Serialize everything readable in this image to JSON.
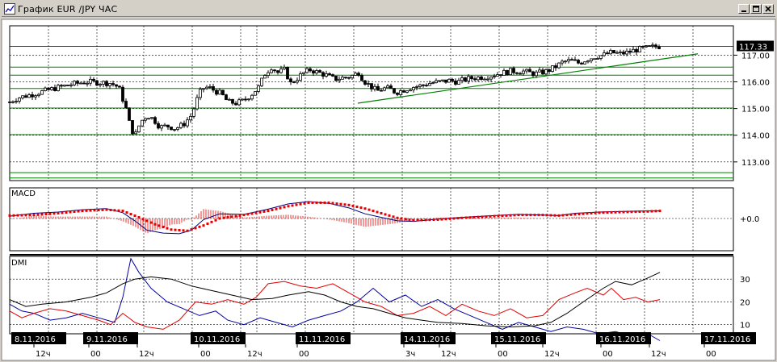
{
  "window": {
    "title": "График EUR /JPY  ЧАС",
    "buttons": [
      "minimize",
      "maximize",
      "close"
    ]
  },
  "colors": {
    "background": "#ffffff",
    "grid": "#000000",
    "level_line": "#008000",
    "trend_line": "#008000",
    "macd_line": "#000080",
    "macd_signal": "#e00000",
    "macd_hist": "#e00000",
    "dmi_adx": "#000000",
    "dmi_plus": "#e00000",
    "dmi_minus": "#0000a0",
    "price_tag_bg": "#000000",
    "date_label_bg": "#000000"
  },
  "chart_data": [
    {
      "type": "candlestick",
      "instrument": "EUR/JPY",
      "timeframe": "ЧАС",
      "ylim": [
        112.3,
        118.1
      ],
      "yticks": [
        "117.00",
        "116.00",
        "115.00",
        "114.00",
        "113.00"
      ],
      "ytick_values": [
        117.0,
        116.0,
        115.0,
        114.0,
        113.0
      ],
      "last_price": "117.33",
      "last_value": 117.33,
      "horizontal_levels": [
        116.55,
        116.25,
        115.75,
        115.02,
        114.02,
        112.6,
        112.4
      ],
      "trendline": {
        "from": [
          "14.11.2016 00:00",
          115.2
        ],
        "to": [
          "17.11.2016 00:00",
          117.05
        ]
      },
      "grid": "dashed",
      "price_path": [
        [
          0,
          115.25
        ],
        [
          10,
          115.4
        ],
        [
          30,
          115.55
        ],
        [
          55,
          115.75
        ],
        [
          75,
          115.9
        ],
        [
          95,
          116.0
        ],
        [
          115,
          115.97
        ],
        [
          125,
          115.95
        ],
        [
          135,
          115.8
        ],
        [
          145,
          114.9
        ],
        [
          150,
          114.2
        ],
        [
          156,
          114.05
        ],
        [
          162,
          114.5
        ],
        [
          170,
          114.75
        ],
        [
          178,
          114.6
        ],
        [
          186,
          114.3
        ],
        [
          195,
          114.35
        ],
        [
          205,
          114.25
        ],
        [
          215,
          114.4
        ],
        [
          225,
          114.75
        ],
        [
          232,
          115.35
        ],
        [
          238,
          115.75
        ],
        [
          246,
          115.8
        ],
        [
          255,
          115.65
        ],
        [
          262,
          115.55
        ],
        [
          270,
          115.25
        ],
        [
          280,
          115.2
        ],
        [
          290,
          115.3
        ],
        [
          300,
          115.55
        ],
        [
          308,
          115.8
        ],
        [
          316,
          116.3
        ],
        [
          324,
          116.55
        ],
        [
          332,
          116.35
        ],
        [
          340,
          116.45
        ],
        [
          348,
          115.95
        ],
        [
          355,
          116.1
        ],
        [
          362,
          116.3
        ],
        [
          372,
          116.45
        ],
        [
          382,
          116.35
        ],
        [
          392,
          116.25
        ],
        [
          402,
          116.1
        ],
        [
          412,
          116.15
        ],
        [
          422,
          116.2
        ],
        [
          432,
          116.35
        ],
        [
          438,
          116.05
        ],
        [
          446,
          115.85
        ],
        [
          455,
          115.65
        ],
        [
          462,
          115.75
        ],
        [
          470,
          115.75
        ],
        [
          478,
          115.6
        ],
        [
          488,
          115.7
        ],
        [
          498,
          115.8
        ],
        [
          508,
          115.85
        ],
        [
          520,
          115.95
        ],
        [
          532,
          116.0
        ],
        [
          545,
          116.05
        ],
        [
          555,
          116.0
        ],
        [
          565,
          116.1
        ],
        [
          575,
          116.15
        ],
        [
          590,
          116.2
        ],
        [
          605,
          116.3
        ],
        [
          620,
          116.4
        ],
        [
          635,
          116.4
        ],
        [
          650,
          116.3
        ],
        [
          665,
          116.4
        ],
        [
          675,
          116.55
        ],
        [
          685,
          116.75
        ],
        [
          695,
          116.8
        ],
        [
          705,
          116.7
        ],
        [
          715,
          116.85
        ],
        [
          725,
          116.95
        ],
        [
          735,
          117.0
        ],
        [
          745,
          117.1
        ],
        [
          755,
          117.05
        ],
        [
          765,
          117.1
        ],
        [
          775,
          117.2
        ],
        [
          785,
          117.25
        ],
        [
          795,
          117.3
        ],
        [
          805,
          117.33
        ]
      ]
    },
    {
      "type": "line",
      "name": "MACD",
      "zero_label": "+0.0",
      "macd_path": [
        [
          0,
          0.2
        ],
        [
          30,
          0.45
        ],
        [
          60,
          0.55
        ],
        [
          90,
          0.75
        ],
        [
          120,
          0.85
        ],
        [
          140,
          0.5
        ],
        [
          155,
          -0.2
        ],
        [
          170,
          -1.0
        ],
        [
          190,
          -1.25
        ],
        [
          210,
          -1.3
        ],
        [
          225,
          -1.0
        ],
        [
          240,
          -0.1
        ],
        [
          260,
          0.4
        ],
        [
          290,
          0.35
        ],
        [
          320,
          0.8
        ],
        [
          345,
          1.25
        ],
        [
          370,
          1.45
        ],
        [
          395,
          1.3
        ],
        [
          420,
          0.9
        ],
        [
          440,
          0.4
        ],
        [
          460,
          0.1
        ],
        [
          480,
          -0.2
        ],
        [
          500,
          -0.25
        ],
        [
          530,
          -0.05
        ],
        [
          560,
          0.1
        ],
        [
          600,
          0.25
        ],
        [
          630,
          0.35
        ],
        [
          660,
          0.3
        ],
        [
          680,
          0.25
        ],
        [
          700,
          0.45
        ],
        [
          730,
          0.55
        ],
        [
          760,
          0.6
        ],
        [
          790,
          0.65
        ],
        [
          805,
          0.65
        ]
      ],
      "signal_path": [
        [
          0,
          0.25
        ],
        [
          30,
          0.3
        ],
        [
          60,
          0.45
        ],
        [
          90,
          0.65
        ],
        [
          120,
          0.75
        ],
        [
          140,
          0.65
        ],
        [
          160,
          0.1
        ],
        [
          180,
          -0.5
        ],
        [
          200,
          -0.95
        ],
        [
          220,
          -1.05
        ],
        [
          240,
          -0.6
        ],
        [
          260,
          0.0
        ],
        [
          290,
          0.3
        ],
        [
          320,
          0.65
        ],
        [
          345,
          1.05
        ],
        [
          370,
          1.35
        ],
        [
          395,
          1.35
        ],
        [
          420,
          1.15
        ],
        [
          440,
          0.85
        ],
        [
          460,
          0.45
        ],
        [
          480,
          0.05
        ],
        [
          500,
          -0.15
        ],
        [
          530,
          -0.1
        ],
        [
          560,
          0.05
        ],
        [
          600,
          0.2
        ],
        [
          630,
          0.3
        ],
        [
          660,
          0.3
        ],
        [
          680,
          0.25
        ],
        [
          700,
          0.35
        ],
        [
          730,
          0.5
        ],
        [
          760,
          0.55
        ],
        [
          790,
          0.6
        ],
        [
          805,
          0.65
        ]
      ]
    },
    {
      "type": "line",
      "name": "DMI",
      "ylim": [
        6,
        40
      ],
      "yticks": [
        "30",
        "20",
        "10"
      ],
      "ytick_values": [
        30,
        20,
        10
      ],
      "adx_path": [
        [
          0,
          21
        ],
        [
          20,
          18
        ],
        [
          40,
          19
        ],
        [
          70,
          20
        ],
        [
          100,
          22
        ],
        [
          120,
          24
        ],
        [
          140,
          28
        ],
        [
          155,
          30
        ],
        [
          175,
          31
        ],
        [
          200,
          30
        ],
        [
          225,
          27
        ],
        [
          250,
          25
        ],
        [
          275,
          23
        ],
        [
          300,
          21
        ],
        [
          325,
          21.5
        ],
        [
          345,
          23
        ],
        [
          370,
          24.5
        ],
        [
          390,
          23
        ],
        [
          410,
          20
        ],
        [
          430,
          18
        ],
        [
          450,
          17
        ],
        [
          470,
          15
        ],
        [
          490,
          13
        ],
        [
          510,
          12
        ],
        [
          530,
          11
        ],
        [
          560,
          10.5
        ],
        [
          590,
          9.5
        ],
        [
          620,
          9
        ],
        [
          650,
          9.5
        ],
        [
          670,
          11
        ],
        [
          690,
          15
        ],
        [
          710,
          20
        ],
        [
          735,
          26
        ],
        [
          750,
          29
        ],
        [
          770,
          27.5
        ],
        [
          790,
          30.5
        ],
        [
          805,
          33
        ]
      ],
      "plus_path": [
        [
          0,
          16
        ],
        [
          15,
          13
        ],
        [
          30,
          15
        ],
        [
          50,
          17
        ],
        [
          70,
          16
        ],
        [
          90,
          14
        ],
        [
          110,
          12
        ],
        [
          125,
          10
        ],
        [
          140,
          15
        ],
        [
          155,
          11
        ],
        [
          170,
          9
        ],
        [
          190,
          8
        ],
        [
          210,
          12
        ],
        [
          230,
          20
        ],
        [
          250,
          19
        ],
        [
          270,
          21
        ],
        [
          290,
          19
        ],
        [
          305,
          22
        ],
        [
          320,
          28
        ],
        [
          340,
          29
        ],
        [
          360,
          27
        ],
        [
          380,
          26
        ],
        [
          400,
          28
        ],
        [
          420,
          24
        ],
        [
          440,
          20
        ],
        [
          460,
          18
        ],
        [
          480,
          14
        ],
        [
          500,
          15
        ],
        [
          520,
          18
        ],
        [
          540,
          14
        ],
        [
          560,
          19
        ],
        [
          580,
          16
        ],
        [
          600,
          14
        ],
        [
          620,
          17
        ],
        [
          640,
          13
        ],
        [
          660,
          14
        ],
        [
          680,
          21
        ],
        [
          700,
          24
        ],
        [
          715,
          26
        ],
        [
          735,
          23
        ],
        [
          745,
          26
        ],
        [
          760,
          21
        ],
        [
          775,
          22
        ],
        [
          790,
          20
        ],
        [
          805,
          21
        ]
      ],
      "minus_path": [
        [
          0,
          19
        ],
        [
          15,
          16
        ],
        [
          30,
          15
        ],
        [
          50,
          12
        ],
        [
          70,
          13
        ],
        [
          90,
          15
        ],
        [
          110,
          13
        ],
        [
          130,
          11
        ],
        [
          140,
          22
        ],
        [
          150,
          39
        ],
        [
          160,
          33
        ],
        [
          175,
          26
        ],
        [
          195,
          20
        ],
        [
          215,
          17
        ],
        [
          235,
          14
        ],
        [
          255,
          16
        ],
        [
          270,
          12
        ],
        [
          290,
          10
        ],
        [
          310,
          13
        ],
        [
          330,
          11
        ],
        [
          350,
          9
        ],
        [
          370,
          12
        ],
        [
          390,
          14
        ],
        [
          410,
          16
        ],
        [
          430,
          20
        ],
        [
          450,
          26
        ],
        [
          470,
          20
        ],
        [
          490,
          23
        ],
        [
          510,
          18
        ],
        [
          530,
          21
        ],
        [
          550,
          17
        ],
        [
          570,
          14
        ],
        [
          590,
          11
        ],
        [
          610,
          8
        ],
        [
          630,
          11
        ],
        [
          650,
          9
        ],
        [
          670,
          7
        ],
        [
          690,
          9
        ],
        [
          710,
          8
        ],
        [
          730,
          6
        ],
        [
          750,
          7
        ],
        [
          770,
          5
        ],
        [
          790,
          6
        ],
        [
          805,
          3
        ]
      ]
    }
  ],
  "x_axis": {
    "dates": [
      "8.11.2016",
      "9.11.2016",
      "10.11.2016",
      "11.11.2016",
      "14.11.2016",
      "15.11.2016",
      "16.11.2016",
      "17.11.2016"
    ],
    "date_values": [
      "2016-11-08",
      "2016-11-09",
      "2016-11-10",
      "2016-11-11",
      "2016-11-14",
      "2016-11-15",
      "2016-11-16",
      "2016-11-17"
    ],
    "hour_labels": [
      "12ч",
      "00",
      "12ч",
      "00",
      "12ч",
      "00",
      "3ч",
      "12ч",
      "00",
      "12ч",
      "00",
      "12ч",
      "00"
    ]
  }
}
